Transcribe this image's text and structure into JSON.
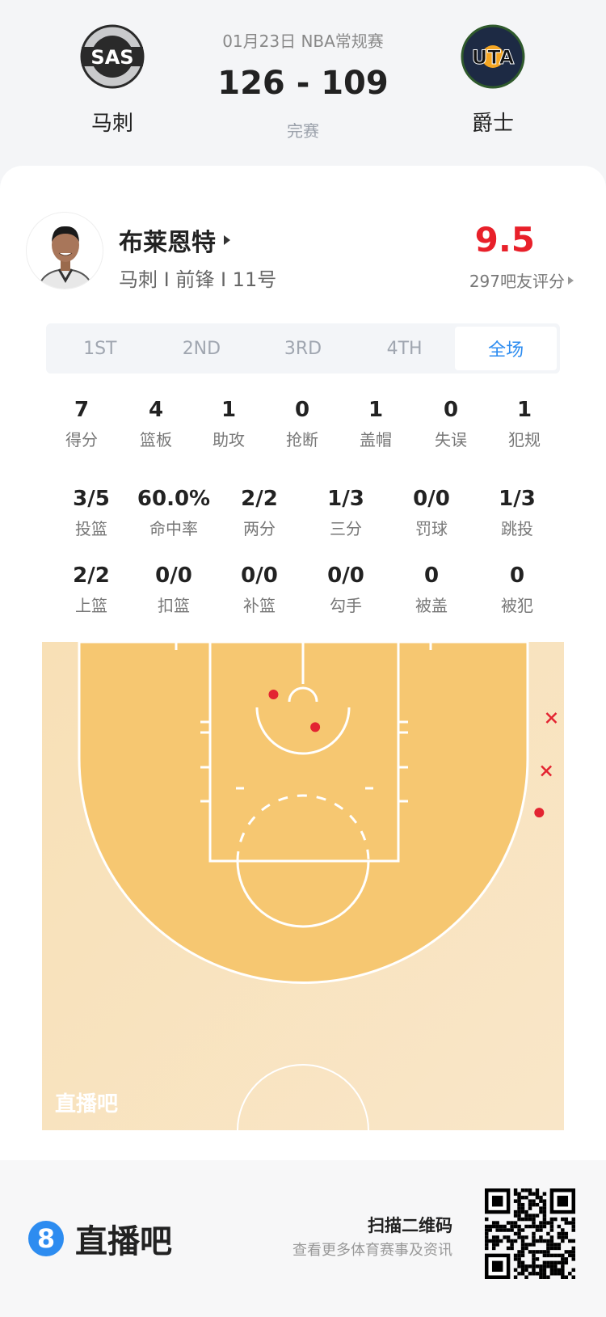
{
  "header": {
    "date_league": "01月23日 NBA常规赛",
    "score": "126 - 109",
    "status": "完赛",
    "home": {
      "abbr": "SAS",
      "name": "马刺"
    },
    "away": {
      "abbr": "UTA",
      "name": "爵士"
    }
  },
  "player": {
    "name": "布莱恩特",
    "info": "马刺 I 前锋 I 11号",
    "rating": "9.5",
    "rating_label": "297吧友评分",
    "rating_color": "#e8202a"
  },
  "tabs": [
    {
      "label": "1ST"
    },
    {
      "label": "2ND"
    },
    {
      "label": "3RD"
    },
    {
      "label": "4TH"
    },
    {
      "label": "全场",
      "active": true
    }
  ],
  "stats_row1": [
    {
      "v": "7",
      "l": "得分"
    },
    {
      "v": "4",
      "l": "篮板"
    },
    {
      "v": "1",
      "l": "助攻"
    },
    {
      "v": "0",
      "l": "抢断"
    },
    {
      "v": "1",
      "l": "盖帽"
    },
    {
      "v": "0",
      "l": "失误"
    },
    {
      "v": "1",
      "l": "犯规"
    }
  ],
  "stats_row2": [
    {
      "v": "3/5",
      "l": "投篮"
    },
    {
      "v": "60.0%",
      "l": "命中率"
    },
    {
      "v": "2/2",
      "l": "两分"
    },
    {
      "v": "1/3",
      "l": "三分"
    },
    {
      "v": "0/0",
      "l": "罚球"
    },
    {
      "v": "1/3",
      "l": "跳投"
    }
  ],
  "stats_row3": [
    {
      "v": "2/2",
      "l": "上篮"
    },
    {
      "v": "0/0",
      "l": "扣篮"
    },
    {
      "v": "0/0",
      "l": "补篮"
    },
    {
      "v": "0/0",
      "l": "勾手"
    },
    {
      "v": "0",
      "l": "被盖"
    },
    {
      "v": "0",
      "l": "被犯"
    }
  ],
  "shot_chart": {
    "watermark": "直播吧",
    "made_color": "#e32431",
    "shots": [
      {
        "x_ft": -2.9,
        "y_ft": 0.0,
        "made": true
      },
      {
        "x_ft": 1.2,
        "y_ft": 3.2,
        "made": true
      },
      {
        "x_ft": 23.2,
        "y_ft": 11.6,
        "made": true
      },
      {
        "x_ft": 24.4,
        "y_ft": 2.3,
        "made": false
      },
      {
        "x_ft": 23.9,
        "y_ft": 7.5,
        "made": false
      }
    ]
  },
  "footer": {
    "brand": "直播吧",
    "brand_badge": "8",
    "scan_title": "扫描二维码",
    "scan_sub": "查看更多体育赛事及资讯"
  }
}
